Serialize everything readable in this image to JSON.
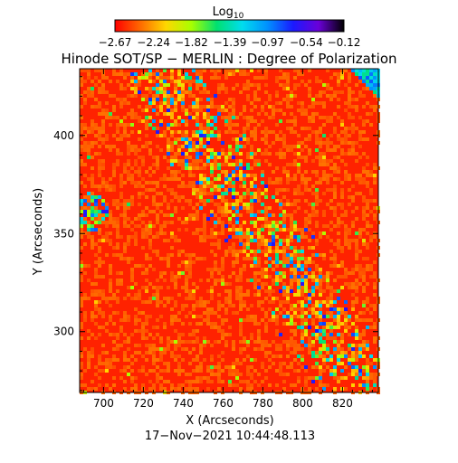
{
  "chart_data": {
    "type": "heatmap",
    "title": "Hinode SOT/SP − MERLIN : Degree of Polarization",
    "colorbar": {
      "label_main": "Log",
      "label_sub": "10",
      "ticks": [
        "−2.67",
        "−2.24",
        "−1.82",
        "−1.39",
        "−0.97",
        "−0.54",
        "−0.12"
      ],
      "range": [
        -2.67,
        -0.12
      ],
      "colors": [
        "#ff0000",
        "#ff6a00",
        "#ffd700",
        "#a8ff00",
        "#00e070",
        "#00ddee",
        "#0090ff",
        "#1a1aff",
        "#6a00d8",
        "#000000"
      ]
    },
    "xlabel": "X (Arcseconds)",
    "ylabel": "Y (Arcseconds)",
    "xlim": [
      688,
      838
    ],
    "ylim": [
      269,
      434
    ],
    "xticks": [
      700,
      720,
      740,
      760,
      780,
      800,
      820
    ],
    "xtick_labels": [
      "700",
      "720",
      "740",
      "760",
      "780",
      "800",
      "820"
    ],
    "yticks": [
      300,
      350,
      400
    ],
    "ytick_labels": [
      "300",
      "350",
      "400"
    ],
    "background_color": "#ff2200",
    "features": [
      {
        "name": "diagonal polarization band",
        "from": [
          738,
          415
        ],
        "to": [
          812,
          300
        ],
        "level": 0.55
      },
      {
        "name": "left edge patch",
        "x": 691,
        "y": 362,
        "level": 0.5
      },
      {
        "name": "corner patch",
        "x": 835,
        "y": 431,
        "level": 0.75
      }
    ],
    "timestamp": "17−Nov−2021 10:44:48.113"
  }
}
